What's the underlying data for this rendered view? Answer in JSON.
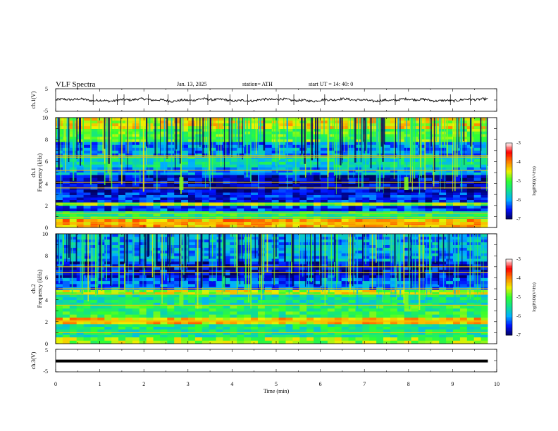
{
  "header": {
    "title": "VLF  Spectra",
    "date": "Jan. 13, 2025",
    "station": "station= ATH",
    "start": "start  UT =   14: 40: 0"
  },
  "chart_data": [
    {
      "type": "line",
      "panel": "ch1-waveform",
      "ylabel": "ch.1(V)",
      "ylim": [
        -5,
        5
      ],
      "y_ticks": [
        "5",
        "-5"
      ],
      "xlim": [
        0,
        10
      ],
      "x_range_data": [
        0,
        9.8
      ],
      "baseline_v": 0,
      "amplitude_v": 0.5,
      "spike_times_min": [
        0.85,
        1.4,
        1.55,
        2.1,
        2.55,
        3.05,
        3.45,
        3.95,
        4.35,
        5.05,
        5.4,
        6.1,
        7.35,
        7.7,
        8.95,
        9.4
      ]
    },
    {
      "type": "heatmap",
      "panel": "ch1-spectrogram",
      "ylabel": "ch.1",
      "ylabel2": "Frequency  (kHz)",
      "ylim": [
        0,
        10
      ],
      "y_ticks": [
        "0",
        "2",
        "4",
        "6",
        "8",
        "10"
      ],
      "xlim": [
        0,
        10
      ],
      "x_range_data": [
        0,
        9.8
      ],
      "levels": [
        {
          "f0": 0.0,
          "f1": 0.8,
          "v": -4.2
        },
        {
          "f0": 0.8,
          "f1": 1.5,
          "v": -5.3
        },
        {
          "f0": 1.5,
          "f1": 2.0,
          "v": -6.4
        },
        {
          "f0": 2.0,
          "f1": 2.3,
          "v": -4.8
        },
        {
          "f0": 2.3,
          "f1": 3.2,
          "v": -6.5
        },
        {
          "f0": 3.2,
          "f1": 4.8,
          "v": -6.7
        },
        {
          "f0": 4.8,
          "f1": 5.5,
          "v": -6.0
        },
        {
          "f0": 5.5,
          "f1": 6.5,
          "v": -5.6
        },
        {
          "f0": 6.5,
          "f1": 7.8,
          "v": -6.1
        },
        {
          "f0": 7.8,
          "f1": 9.0,
          "v": -5.0
        },
        {
          "f0": 9.0,
          "f1": 10.0,
          "v": -4.5
        }
      ],
      "lines_khz": [
        0.4,
        0.9,
        1.3,
        2.15,
        3.6,
        4.1,
        5.2,
        6.4,
        6.55
      ],
      "burst_times_min": [
        2.85,
        7.95
      ]
    },
    {
      "type": "heatmap",
      "panel": "ch2-spectrogram",
      "ylabel": "ch.2",
      "ylabel2": "Frequency  (kHz)",
      "ylim": [
        0,
        10
      ],
      "y_ticks": [
        "0",
        "2",
        "4",
        "6",
        "8",
        "10"
      ],
      "xlim": [
        0,
        10
      ],
      "x_range_data": [
        0,
        9.8
      ],
      "levels": [
        {
          "f0": 0.0,
          "f1": 0.6,
          "v": -4.8
        },
        {
          "f0": 0.6,
          "f1": 1.8,
          "v": -5.4
        },
        {
          "f0": 1.8,
          "f1": 2.4,
          "v": -4.3
        },
        {
          "f0": 2.4,
          "f1": 3.5,
          "v": -5.2
        },
        {
          "f0": 3.5,
          "f1": 4.5,
          "v": -5.5
        },
        {
          "f0": 4.5,
          "f1": 4.9,
          "v": -4.6
        },
        {
          "f0": 4.9,
          "f1": 6.0,
          "v": -6.2
        },
        {
          "f0": 6.0,
          "f1": 7.5,
          "v": -6.6
        },
        {
          "f0": 7.5,
          "f1": 10.0,
          "v": -6.0
        }
      ],
      "lines_khz": [
        1.0,
        2.0,
        2.1,
        3.5,
        4.5,
        5.0,
        6.5,
        7.0
      ],
      "burst_times_min": [
        2.85,
        7.95
      ]
    },
    {
      "type": "line",
      "panel": "ch3-waveform",
      "ylabel": "ch.3(V)",
      "ylim": [
        -5,
        5
      ],
      "y_ticks": [
        "5",
        "-5"
      ],
      "xlim": [
        0,
        10
      ],
      "x_range_data": [
        0,
        9.8
      ],
      "baseline_v": -0.2,
      "x_ticks": [
        "0",
        "1",
        "2",
        "3",
        "4",
        "5",
        "6",
        "7",
        "8",
        "9",
        "10"
      ],
      "xlabel": "Time  (min)"
    }
  ],
  "colorbars": [
    {
      "label": "log(PSD)(V²/Hz)",
      "ticks": [
        "-3",
        "-4",
        "-5",
        "-6",
        "-7"
      ],
      "range": [
        -7,
        -3
      ]
    },
    {
      "label": "log(PSD)(V²/Hz)",
      "ticks": [
        "-3",
        "-4",
        "-5",
        "-6",
        "-7"
      ],
      "range": [
        -7,
        -3
      ]
    }
  ],
  "colormap": [
    "#000060",
    "#0010ff",
    "#00b0ff",
    "#10e090",
    "#30ff30",
    "#f0f000",
    "#ff8000",
    "#ff0000",
    "#ffffff"
  ]
}
